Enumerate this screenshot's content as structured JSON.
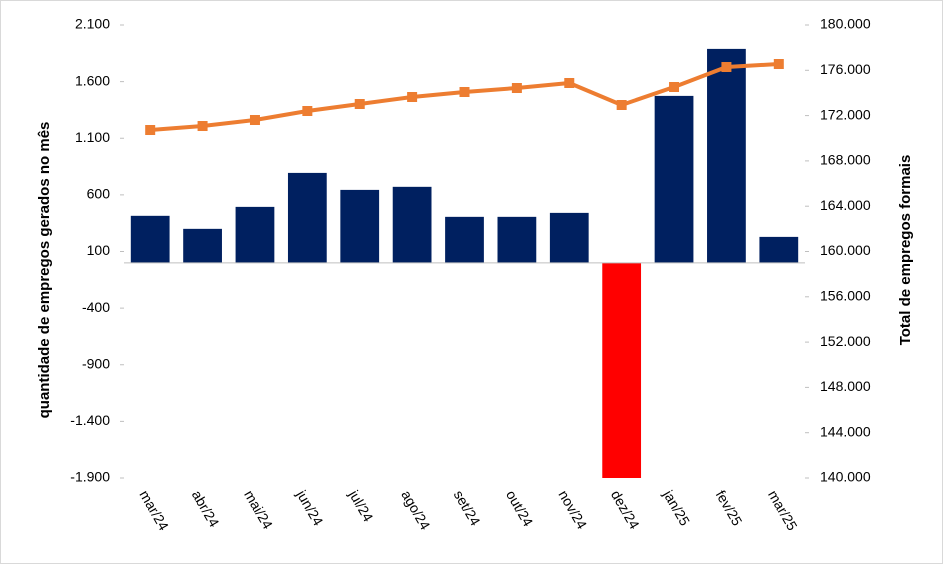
{
  "chart_data": {
    "type": "bar+line",
    "categories": [
      "mar/24",
      "abr/24",
      "mai/24",
      "jun/24",
      "jul/24",
      "ago/24",
      "set/24",
      "out/24",
      "nov/24",
      "dez/24",
      "jan/25",
      "fev/25",
      "mar/25"
    ],
    "ylabel": "quantidade de empregos gerados no mês",
    "y2label": "Total de empregos formais",
    "ylim": [
      -1900,
      2100
    ],
    "yticks": [
      {
        "value": -1900,
        "label": "-1.900"
      },
      {
        "value": -1400,
        "label": "-1.400"
      },
      -900,
      -400,
      100,
      600,
      {
        "value": 1100,
        "label": "1.100"
      },
      {
        "value": 1600,
        "label": "1.600"
      },
      {
        "value": 2100,
        "label": "2.100"
      }
    ],
    "y2lim": [
      140000,
      180000
    ],
    "y2ticks": [
      {
        "value": 140000,
        "label": "140.000"
      },
      {
        "value": 144000,
        "label": "144.000"
      },
      {
        "value": 148000,
        "label": "148.000"
      },
      {
        "value": 152000,
        "label": "152.000"
      },
      {
        "value": 156000,
        "label": "156.000"
      },
      {
        "value": 160000,
        "label": "160.000"
      },
      {
        "value": 164000,
        "label": "164.000"
      },
      {
        "value": 168000,
        "label": "168.000"
      },
      {
        "value": 172000,
        "label": "172.000"
      },
      {
        "value": 176000,
        "label": "176.000"
      },
      {
        "value": 180000,
        "label": "180.000"
      }
    ],
    "series": [
      {
        "type": "bar",
        "color": "#002060",
        "colors": [
          "#002060",
          "#002060",
          "#002060",
          "#002060",
          "#002060",
          "#002060",
          "#002060",
          "#002060",
          "#002060",
          "#ff0000",
          "#002060",
          "#002060",
          "#002060"
        ],
        "values": [
          415,
          300,
          494,
          794,
          644,
          671,
          406,
          406,
          441,
          -1900,
          1474,
          1889,
          229
        ]
      },
      {
        "type": "line",
        "axis": "y2",
        "color": "#ed7d31",
        "values": [
          170728,
          171081,
          171611,
          172406,
          173024,
          173642,
          174084,
          174437,
          174879,
          172936,
          174525,
          176291,
          176556
        ]
      }
    ]
  }
}
